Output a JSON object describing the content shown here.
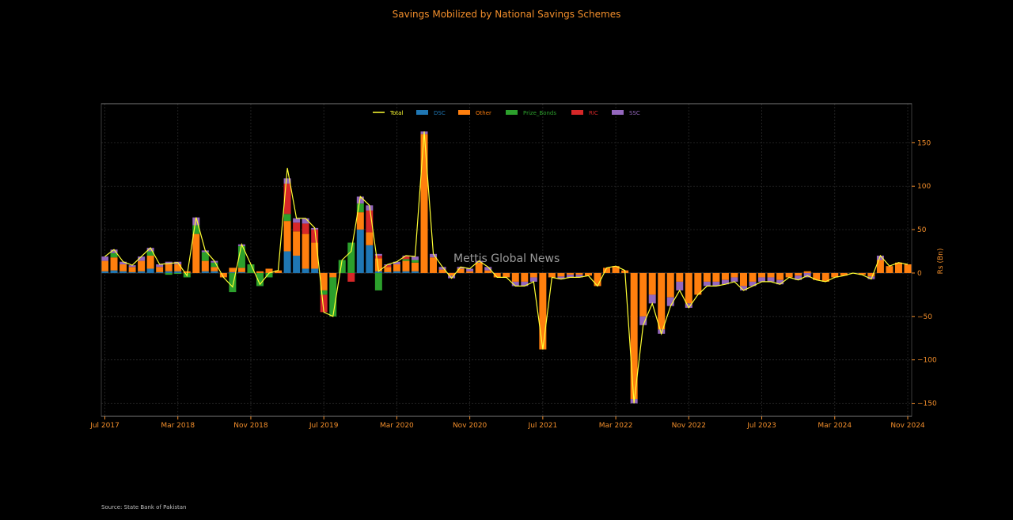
{
  "title": "Savings Mobilized by National Savings Schemes",
  "source": "Source: State Bank of Pakistan",
  "watermark": "Mettis Global News",
  "colors": {
    "background": "#000000",
    "text": "#f28e2b",
    "total": "#ffff33",
    "DSC": "#1f77b4",
    "Other": "#ff7f0e",
    "Prize_Bonds": "#2ca02c",
    "RIC": "#d62728",
    "SSC": "#9467bd"
  },
  "chart_data": {
    "type": "bar",
    "stacked": true,
    "ylabel": "Rs (Bn)",
    "ylim": [
      -165,
      195
    ],
    "yticks": [
      -150,
      -100,
      -50,
      0,
      50,
      100,
      150
    ],
    "y_axis_side": "right",
    "grid": true,
    "legend_placement": "top-center",
    "x_start": "2017-07",
    "x_end": "2024-11",
    "xticks": [
      "Jul 2017",
      "Mar 2018",
      "Nov 2018",
      "Jul 2019",
      "Mar 2020",
      "Nov 2020",
      "Jul 2021",
      "Mar 2022",
      "Nov 2022",
      "Jul 2023",
      "Mar 2024",
      "Nov 2024"
    ],
    "legend": [
      "Total",
      "DSC",
      "Other",
      "Prize_Bonds",
      "RIC",
      "SSC"
    ],
    "x": [
      "2017-07",
      "2017-08",
      "2017-09",
      "2017-10",
      "2017-11",
      "2017-12",
      "2018-01",
      "2018-02",
      "2018-03",
      "2018-04",
      "2018-05",
      "2018-06",
      "2018-07",
      "2018-08",
      "2018-09",
      "2018-10",
      "2018-11",
      "2018-12",
      "2019-01",
      "2019-02",
      "2019-03",
      "2019-04",
      "2019-05",
      "2019-06",
      "2019-07",
      "2019-08",
      "2019-09",
      "2019-10",
      "2019-11",
      "2019-12",
      "2020-01",
      "2020-02",
      "2020-03",
      "2020-04",
      "2020-05",
      "2020-06",
      "2020-07",
      "2020-08",
      "2020-09",
      "2020-10",
      "2020-11",
      "2020-12",
      "2021-01",
      "2021-02",
      "2021-03",
      "2021-04",
      "2021-05",
      "2021-06",
      "2021-07",
      "2021-08",
      "2021-09",
      "2021-10",
      "2021-11",
      "2021-12",
      "2022-01",
      "2022-02",
      "2022-03",
      "2022-04",
      "2022-05",
      "2022-06",
      "2022-07",
      "2022-08",
      "2022-09",
      "2022-10",
      "2022-11",
      "2022-12",
      "2023-01",
      "2023-02",
      "2023-03",
      "2023-04",
      "2023-05",
      "2023-06",
      "2023-07",
      "2023-08",
      "2023-09",
      "2023-10",
      "2023-11",
      "2023-12",
      "2024-01",
      "2024-02",
      "2024-03",
      "2024-04",
      "2024-05",
      "2024-06",
      "2024-07",
      "2024-08",
      "2024-09",
      "2024-10",
      "2024-11"
    ],
    "series": [
      {
        "name": "DSC",
        "values": [
          2,
          3,
          2,
          1,
          2,
          5,
          1,
          2,
          2,
          0,
          0,
          2,
          2,
          0,
          1,
          1,
          0,
          0,
          0,
          0,
          25,
          20,
          5,
          5,
          0,
          0,
          0,
          0,
          50,
          32,
          2,
          1,
          2,
          2,
          2,
          0,
          0,
          0,
          0,
          0,
          0,
          0,
          0,
          0,
          0,
          0,
          0,
          0,
          0,
          0,
          0,
          0,
          0,
          0,
          0,
          0,
          0,
          0,
          0,
          0,
          0,
          0,
          0,
          0,
          0,
          0,
          0,
          0,
          0,
          0,
          0,
          0,
          0,
          0,
          0,
          0,
          0,
          0,
          0,
          0,
          0,
          0,
          0,
          0,
          0,
          0,
          0,
          0,
          0
        ]
      },
      {
        "name": "Other",
        "values": [
          12,
          15,
          8,
          6,
          12,
          15,
          6,
          8,
          8,
          2,
          45,
          12,
          5,
          -5,
          5,
          5,
          0,
          2,
          5,
          3,
          35,
          28,
          40,
          30,
          -20,
          -5,
          0,
          0,
          20,
          15,
          15,
          6,
          8,
          12,
          10,
          160,
          18,
          4,
          -3,
          5,
          2,
          12,
          3,
          -5,
          -5,
          -10,
          -10,
          -5,
          -88,
          -5,
          -4,
          -2,
          -2,
          -3,
          -15,
          6,
          8,
          3,
          -145,
          -50,
          -25,
          -65,
          -28,
          -10,
          -35,
          -25,
          -10,
          -10,
          -8,
          -5,
          -15,
          -10,
          -5,
          -5,
          -8,
          -5,
          -3,
          2,
          -8,
          -10,
          -5,
          -3,
          0,
          -2,
          -4,
          15,
          8,
          12,
          10
        ]
      },
      {
        "name": "Prize_Bonds",
        "values": [
          0,
          5,
          0,
          0,
          0,
          5,
          0,
          -2,
          -1,
          -5,
          10,
          10,
          5,
          0,
          -22,
          25,
          10,
          -15,
          -5,
          0,
          8,
          0,
          0,
          0,
          -5,
          -45,
          15,
          35,
          10,
          0,
          -20,
          0,
          0,
          2,
          3,
          0,
          0,
          0,
          0,
          0,
          0,
          0,
          0,
          0,
          0,
          0,
          0,
          0,
          0,
          0,
          0,
          0,
          0,
          0,
          0,
          0,
          0,
          0,
          0,
          0,
          0,
          0,
          0,
          0,
          0,
          0,
          0,
          0,
          0,
          0,
          0,
          0,
          0,
          0,
          0,
          0,
          0,
          0,
          0,
          0,
          0,
          0,
          0,
          0,
          0,
          0,
          0,
          0,
          0
        ]
      },
      {
        "name": "RIC",
        "values": [
          0,
          0,
          0,
          0,
          0,
          0,
          0,
          0,
          0,
          0,
          0,
          0,
          0,
          0,
          0,
          0,
          0,
          0,
          0,
          0,
          35,
          10,
          12,
          15,
          -20,
          0,
          0,
          -10,
          0,
          25,
          3,
          2,
          0,
          3,
          0,
          0,
          0,
          0,
          0,
          0,
          0,
          0,
          0,
          0,
          0,
          0,
          0,
          0,
          0,
          0,
          0,
          0,
          0,
          0,
          0,
          0,
          0,
          0,
          0,
          0,
          0,
          0,
          0,
          0,
          0,
          0,
          0,
          0,
          0,
          0,
          0,
          0,
          0,
          0,
          0,
          0,
          0,
          0,
          0,
          0,
          0,
          0,
          0,
          0,
          0,
          0,
          0,
          0,
          0
        ]
      },
      {
        "name": "SSC",
        "values": [
          5,
          4,
          3,
          2,
          5,
          4,
          3,
          3,
          3,
          0,
          9,
          2,
          2,
          0,
          0,
          2,
          0,
          0,
          0,
          0,
          6,
          5,
          6,
          2,
          0,
          0,
          0,
          0,
          8,
          6,
          2,
          1,
          3,
          1,
          4,
          3,
          4,
          3,
          -3,
          2,
          3,
          2,
          4,
          0,
          0,
          -5,
          -5,
          -5,
          0,
          0,
          -3,
          -3,
          -3,
          0,
          0,
          0,
          0,
          0,
          -5,
          -10,
          -10,
          -5,
          -10,
          -10,
          -5,
          0,
          -5,
          -5,
          -5,
          -5,
          -5,
          -5,
          -5,
          -5,
          -5,
          0,
          -5,
          -5,
          0,
          0,
          0,
          0,
          0,
          0,
          -3,
          5,
          0,
          0,
          0
        ]
      }
    ],
    "total": [
      19,
      27,
      13,
      9,
      19,
      29,
      10,
      11,
      12,
      -3,
      64,
      26,
      14,
      -5,
      -16,
      33,
      10,
      -13,
      0,
      3,
      121,
      63,
      63,
      52,
      -45,
      -50,
      15,
      25,
      88,
      78,
      2,
      10,
      13,
      20,
      19,
      163,
      22,
      7,
      -6,
      7,
      5,
      14,
      7,
      -5,
      -5,
      -15,
      -15,
      -10,
      -88,
      -5,
      -7,
      -5,
      -5,
      -3,
      -15,
      6,
      8,
      3,
      -150,
      -60,
      -35,
      -70,
      -38,
      -20,
      -40,
      -25,
      -15,
      -15,
      -13,
      -10,
      -20,
      -15,
      -10,
      -10,
      -13,
      -5,
      -8,
      -3,
      -8,
      -10,
      -5,
      -3,
      0,
      -2,
      -7,
      20,
      8,
      12,
      10
    ]
  }
}
